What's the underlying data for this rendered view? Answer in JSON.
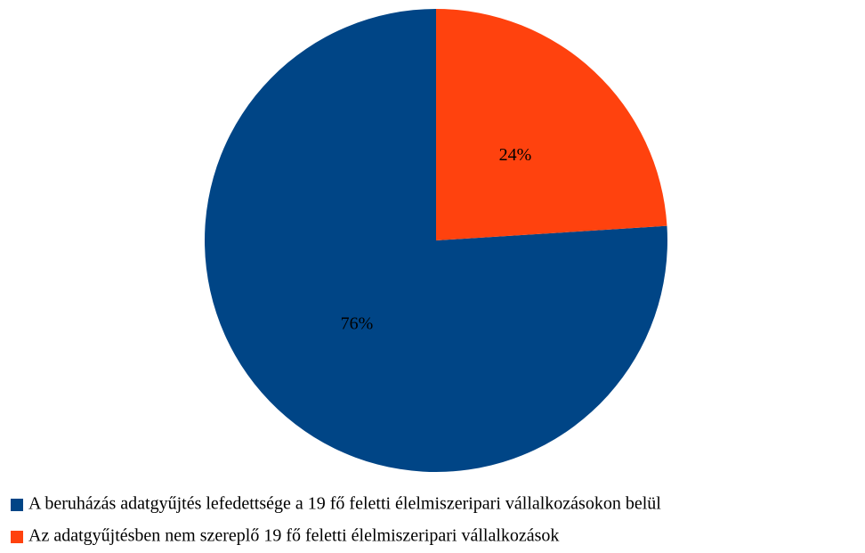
{
  "chart_data": {
    "type": "pie",
    "categories": [
      "A beruházás adatgyűjtés lefedettsége a 19 fő feletti élelmiszeripari vállalkozásokon belül",
      "Az adatgyűjtésben nem szereplő 19 fő feletti élelmiszeripari vállalkozások"
    ],
    "values": [
      76,
      24
    ],
    "value_labels": [
      "76%",
      "24%"
    ],
    "colors": [
      "#004586",
      "#ff420e"
    ],
    "legend": "bottom"
  }
}
